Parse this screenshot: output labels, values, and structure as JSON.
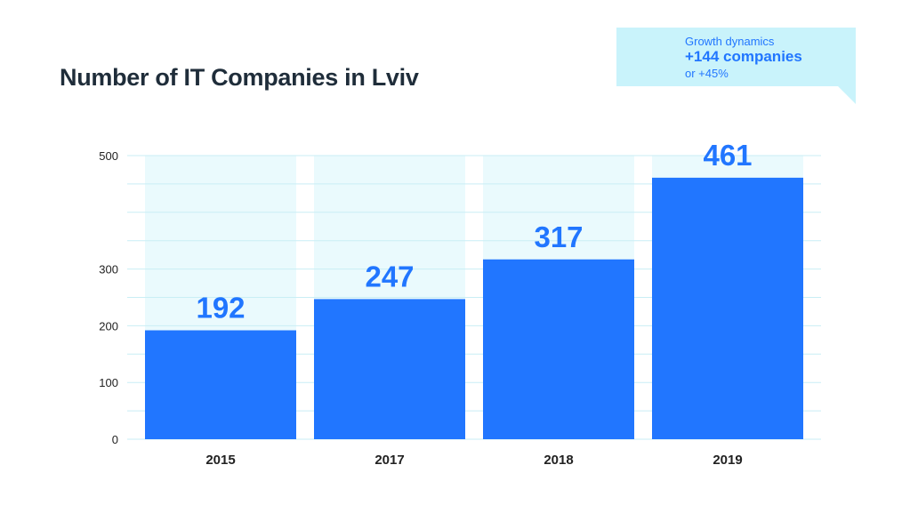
{
  "chart_data": {
    "type": "bar",
    "title": "Number of IT Companies in Lviv",
    "categories": [
      "2015",
      "2017",
      "2018",
      "2019"
    ],
    "values": [
      192,
      247,
      317,
      461
    ],
    "data_labels": [
      "192",
      "247",
      "317",
      "461"
    ],
    "y_ticks": [
      {
        "value": 0,
        "label": "0"
      },
      {
        "value": 100,
        "label": "100"
      },
      {
        "value": 200,
        "label": "200"
      },
      {
        "value": 300,
        "label": "300"
      },
      {
        "value": 500,
        "label": "500"
      }
    ],
    "ylim": [
      0,
      500
    ],
    "grid": true,
    "background_columns": true,
    "colors": {
      "bar": "#2176ff",
      "column_bg": "#eafafd",
      "grid": "#c9eef5",
      "label": "#2176ff",
      "tick": "#222222"
    }
  },
  "callout": {
    "label": "Growth dynamics",
    "headline": "+144 companies",
    "subline": "or +45%",
    "color": "#c9f3fb"
  }
}
